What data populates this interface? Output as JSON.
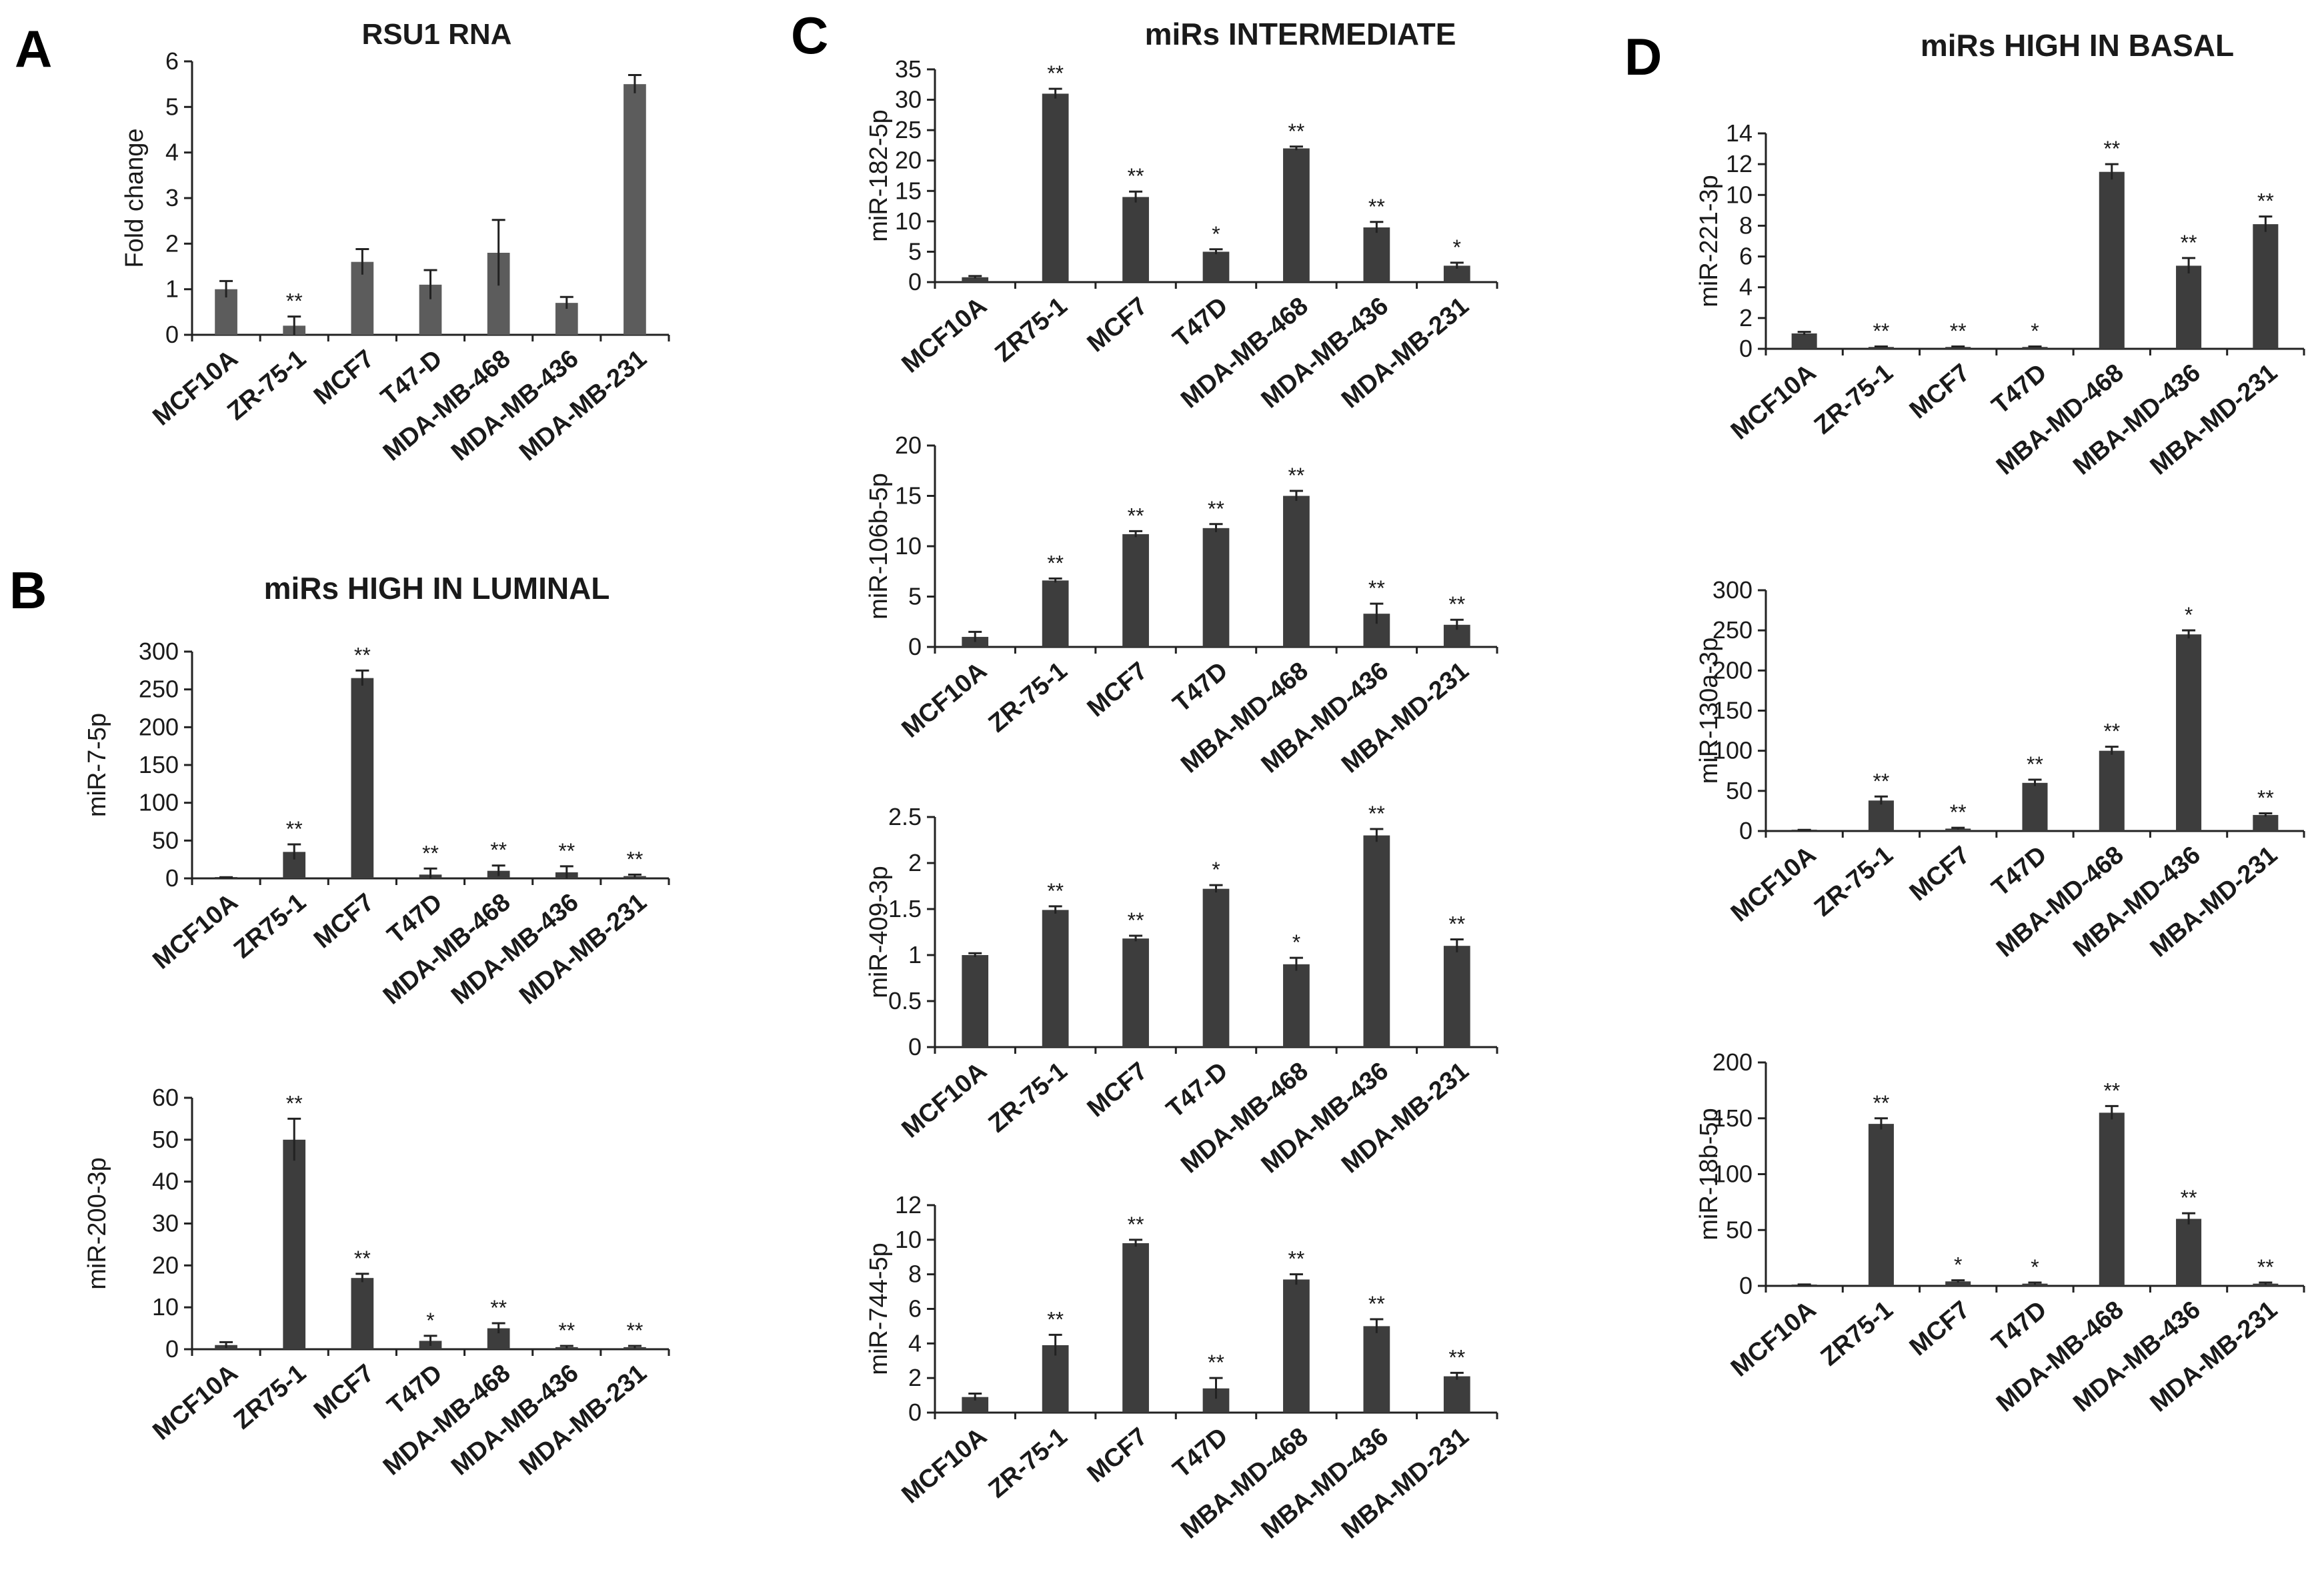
{
  "panel_labels": [
    {
      "id": "A",
      "text": "A"
    },
    {
      "id": "B",
      "text": "B"
    },
    {
      "id": "C",
      "text": "C"
    },
    {
      "id": "D",
      "text": "D"
    }
  ],
  "panel_titles": {
    "A": "RSU1 RNA",
    "B": "miRs HIGH IN LUMINAL",
    "C": "miRs INTERMEDIATE",
    "D": "miRs HIGH IN BASAL"
  },
  "colors": {
    "bar_rsu1": "#5c5c5c",
    "bar": "#3d3d3d",
    "axis": "#222222",
    "text": "#1a1a1a"
  },
  "chart_data": [
    {
      "id": "A",
      "type": "bar",
      "title": "",
      "xlabel": "",
      "ylabel": "Fold change",
      "ylim": [
        0,
        6
      ],
      "yticks": [
        0,
        1,
        2,
        3,
        4,
        5,
        6
      ],
      "categories": [
        "MCF10A",
        "ZR-75-1",
        "MCF7",
        "T47-D",
        "MDA-MB-468",
        "MDA-MB-436",
        "MDA-MB-231"
      ],
      "values": [
        1.0,
        0.2,
        1.6,
        1.1,
        1.8,
        0.7,
        5.5
      ],
      "errors": [
        0.18,
        0.2,
        0.28,
        0.32,
        0.72,
        0.13,
        0.2
      ],
      "significance": [
        "",
        "**",
        "",
        "",
        "",
        "",
        ""
      ]
    },
    {
      "id": "B1",
      "type": "bar",
      "title": "",
      "xlabel": "",
      "ylabel": "miR-7-5p",
      "ylim": [
        0,
        300
      ],
      "yticks": [
        0,
        50,
        100,
        150,
        200,
        250,
        300
      ],
      "categories": [
        "MCF10A",
        "ZR75-1",
        "MCF7",
        "T47D",
        "MDA-MB-468",
        "MDA-MB-436",
        "MDA-MB-231"
      ],
      "values": [
        1,
        35,
        265,
        5,
        10,
        8,
        3
      ],
      "errors": [
        0.5,
        10,
        10,
        8,
        7,
        8,
        2
      ],
      "significance": [
        "",
        "**",
        "**",
        "**",
        "**",
        "**",
        "**"
      ]
    },
    {
      "id": "B2",
      "type": "bar",
      "title": "",
      "xlabel": "",
      "ylabel": "miR-200-3p",
      "ylim": [
        0,
        60
      ],
      "yticks": [
        0,
        10,
        20,
        30,
        40,
        50,
        60
      ],
      "categories": [
        "MCF10A",
        "ZR75-1",
        "MCF7",
        "T47D",
        "MDA-MB-468",
        "MDA-MB-436",
        "MDA-MB-231"
      ],
      "values": [
        1,
        50,
        17,
        2,
        5,
        0.5,
        0.5
      ],
      "errors": [
        0.7,
        5,
        1,
        1.2,
        1.2,
        0.3,
        0.3
      ],
      "significance": [
        "",
        "**",
        "**",
        "*",
        "**",
        "**",
        "**"
      ]
    },
    {
      "id": "C1",
      "type": "bar",
      "title": "",
      "xlabel": "",
      "ylabel": "miR-182-5p",
      "ylim": [
        0,
        35
      ],
      "yticks": [
        0,
        5,
        10,
        15,
        20,
        25,
        30,
        35
      ],
      "categories": [
        "MCF10A",
        "ZR75-1",
        "MCF7",
        "T47D",
        "MDA-MB-468",
        "MDA-MB-436",
        "MDA-MB-231"
      ],
      "values": [
        0.8,
        31,
        14,
        5,
        22,
        9,
        2.7
      ],
      "errors": [
        0.2,
        0.8,
        0.9,
        0.4,
        0.3,
        0.9,
        0.5
      ],
      "significance": [
        "",
        "**",
        "**",
        "*",
        "**",
        "**",
        "*"
      ]
    },
    {
      "id": "C2",
      "type": "bar",
      "title": "",
      "xlabel": "",
      "ylabel": "miR-106b-5p",
      "ylim": [
        0,
        20
      ],
      "yticks": [
        0,
        5,
        10,
        15,
        20
      ],
      "categories": [
        "MCF10A",
        "ZR-75-1",
        "MCF7",
        "T47D",
        "MBA-MD-468",
        "MBA-MD-436",
        "MBA-MD-231"
      ],
      "values": [
        1,
        6.6,
        11.2,
        11.8,
        15,
        3.3,
        2.2
      ],
      "errors": [
        0.5,
        0.2,
        0.3,
        0.4,
        0.5,
        1.0,
        0.5
      ],
      "significance": [
        "",
        "**",
        "**",
        "**",
        "**",
        "**",
        "**"
      ]
    },
    {
      "id": "C3",
      "type": "bar",
      "title": "",
      "xlabel": "",
      "ylabel": "miR-409-3p",
      "ylim": [
        0,
        2.5
      ],
      "yticks": [
        "0",
        "0.5",
        "1",
        "1.5",
        "2",
        "2.5"
      ],
      "categories": [
        "MCF10A",
        "ZR-75-1",
        "MCF7",
        "T47-D",
        "MDA-MB-468",
        "MDA-MB-436",
        "MDA-MB-231"
      ],
      "values": [
        1.0,
        1.49,
        1.18,
        1.72,
        0.9,
        2.3,
        1.1
      ],
      "errors": [
        0.02,
        0.04,
        0.03,
        0.04,
        0.07,
        0.07,
        0.07
      ],
      "significance": [
        "",
        "**",
        "**",
        "*",
        "*",
        "**",
        "**"
      ]
    },
    {
      "id": "C4",
      "type": "bar",
      "title": "",
      "xlabel": "",
      "ylabel": "miR-744-5p",
      "ylim": [
        0,
        12
      ],
      "yticks": [
        0,
        2,
        4,
        6,
        8,
        10,
        12
      ],
      "categories": [
        "MCF10A",
        "ZR-75-1",
        "MCF7",
        "T47D",
        "MBA-MD-468",
        "MBA-MD-436",
        "MBA-MD-231"
      ],
      "values": [
        0.9,
        3.9,
        9.8,
        1.4,
        7.7,
        5.0,
        2.1
      ],
      "errors": [
        0.2,
        0.6,
        0.2,
        0.6,
        0.3,
        0.4,
        0.2
      ],
      "significance": [
        "",
        "**",
        "**",
        "**",
        "**",
        "**",
        "**"
      ]
    },
    {
      "id": "D1",
      "type": "bar",
      "title": "",
      "xlabel": "",
      "ylabel": "miR-221-3p",
      "ylim": [
        0,
        14
      ],
      "yticks": [
        0,
        2,
        4,
        6,
        8,
        10,
        12,
        14
      ],
      "categories": [
        "MCF10A",
        "ZR-75-1",
        "MCF7",
        "T47D",
        "MBA-MD-468",
        "MBA-MD-436",
        "MBA-MD-231"
      ],
      "values": [
        1.0,
        0.12,
        0.12,
        0.12,
        11.5,
        5.4,
        8.1
      ],
      "errors": [
        0.1,
        0.03,
        0.03,
        0.03,
        0.5,
        0.5,
        0.5
      ],
      "significance": [
        "",
        "**",
        "**",
        "*",
        "**",
        "**",
        "**"
      ]
    },
    {
      "id": "D2",
      "type": "bar",
      "title": "",
      "xlabel": "",
      "ylabel": "miR-130a-3p",
      "ylim": [
        0,
        300
      ],
      "yticks": [
        0,
        50,
        100,
        150,
        200,
        250,
        300
      ],
      "categories": [
        "MCF10A",
        "ZR-75-1",
        "MCF7",
        "T47D",
        "MBA-MD-468",
        "MBA-MD-436",
        "MBA-MD-231"
      ],
      "values": [
        1,
        38,
        3,
        60,
        100,
        245,
        20
      ],
      "errors": [
        0.5,
        5,
        1,
        4,
        5,
        5,
        2
      ],
      "significance": [
        "",
        "**",
        "**",
        "**",
        "**",
        "*",
        "**"
      ]
    },
    {
      "id": "D3",
      "type": "bar",
      "title": "",
      "xlabel": "",
      "ylabel": "miR-18b-5p",
      "ylim": [
        0,
        200
      ],
      "yticks": [
        0,
        50,
        100,
        150,
        200
      ],
      "categories": [
        "MCF10A",
        "ZR75-1",
        "MCF7",
        "T47D",
        "MDA-MB-468",
        "MDA-MB-436",
        "MDA-MB-231"
      ],
      "values": [
        1,
        145,
        4,
        2,
        155,
        60,
        2
      ],
      "errors": [
        0.3,
        5,
        1,
        1,
        6,
        5,
        1
      ],
      "significance": [
        "",
        "**",
        "*",
        "*",
        "**",
        "**",
        "**"
      ]
    }
  ]
}
